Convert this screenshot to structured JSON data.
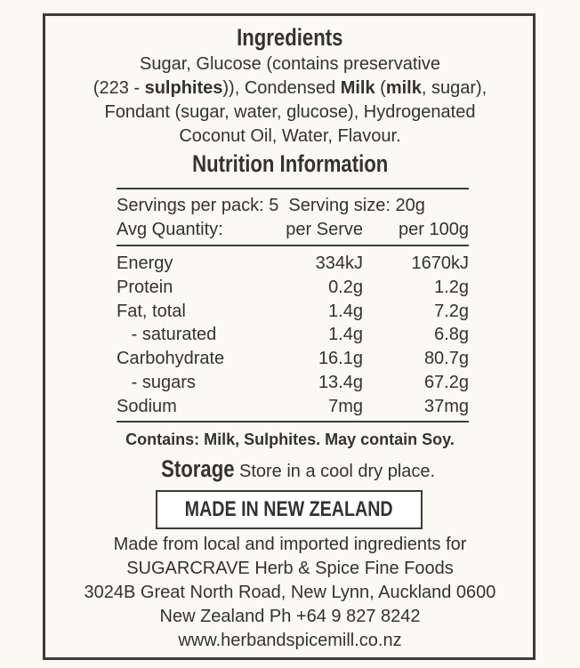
{
  "ingredients": {
    "title": "Ingredients",
    "line1": "Sugar, Glucose (contains preservative",
    "line2_a": "(223 - ",
    "line2_b": "sulphites",
    "line2_c": ")), Condensed ",
    "line2_d": "Milk",
    "line2_e": " (",
    "line2_f": "milk",
    "line2_g": ", sugar),",
    "line3": "Fondant (sugar, water, glucose), Hydrogenated",
    "line4": "Coconut Oil, Water, Flavour."
  },
  "nutrition": {
    "title": "Nutrition Information",
    "servings": "Servings per pack: 5  Serving size: 20g",
    "header": {
      "label": "Avg Quantity:",
      "per_serve": "per Serve",
      "per_100g": "per 100g"
    },
    "rows": [
      {
        "label": "Energy",
        "per_serve": "334kJ",
        "per_100g": "1670kJ"
      },
      {
        "label": "Protein",
        "per_serve": "0.2g",
        "per_100g": "1.2g"
      },
      {
        "label": "Fat, total",
        "per_serve": "1.4g",
        "per_100g": "7.2g"
      },
      {
        "label": "   - saturated",
        "per_serve": "1.4g",
        "per_100g": "6.8g"
      },
      {
        "label": "Carbohydrate",
        "per_serve": "16.1g",
        "per_100g": "80.7g"
      },
      {
        "label": "   - sugars",
        "per_serve": "13.4g",
        "per_100g": "67.2g"
      },
      {
        "label": "Sodium",
        "per_serve": "7mg",
        "per_100g": "37mg"
      }
    ]
  },
  "allergens": "Contains: Milk, Sulphites. May contain Soy.",
  "storage": {
    "title": "Storage",
    "text": " Store in a cool dry place."
  },
  "origin_badge": "MADE IN NEW ZEALAND",
  "address": [
    "Made from local and imported ingredients for",
    "SUGARCRAVE Herb & Spice Fine Foods",
    "3024B Great North Road, New Lynn, Auckland 0600",
    "New Zealand Ph +64 9 827 8242",
    "www.herbandspicemill.co.nz"
  ]
}
